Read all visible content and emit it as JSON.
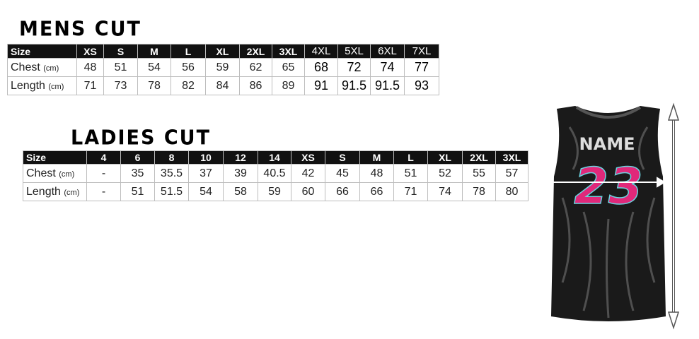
{
  "mens": {
    "title": "MENS CUT",
    "headers": [
      "Size",
      "XS",
      "S",
      "M",
      "L",
      "XL",
      "2XL",
      "3XL",
      "4XL",
      "5XL",
      "6XL",
      "7XL"
    ],
    "rows": [
      {
        "label": "Chest",
        "unit": "(cm)",
        "values": [
          "48",
          "51",
          "54",
          "56",
          "59",
          "62",
          "65",
          "68",
          "72",
          "74",
          "77"
        ]
      },
      {
        "label": "Length",
        "unit": "(cm)",
        "values": [
          "71",
          "73",
          "78",
          "82",
          "84",
          "86",
          "89",
          "91",
          "91.5",
          "91.5",
          "93"
        ]
      }
    ]
  },
  "ladies": {
    "title": "LADIES CUT",
    "headers": [
      "Size",
      "4",
      "6",
      "8",
      "10",
      "12",
      "14",
      "XS",
      "S",
      "M",
      "L",
      "XL",
      "2XL",
      "3XL"
    ],
    "rows": [
      {
        "label": "Chest",
        "unit": "(cm)",
        "values": [
          "-",
          "35",
          "35.5",
          "37",
          "39",
          "40.5",
          "42",
          "45",
          "48",
          "51",
          "52",
          "55",
          "57"
        ]
      },
      {
        "label": "Length",
        "unit": "(cm)",
        "values": [
          "-",
          "51",
          "51.5",
          "54",
          "58",
          "59",
          "60",
          "66",
          "66",
          "71",
          "74",
          "78",
          "80"
        ]
      }
    ]
  },
  "jersey": {
    "name": "NAME",
    "number": "23",
    "number_color": "#e0287a",
    "body_color": "#1a1a1a"
  }
}
